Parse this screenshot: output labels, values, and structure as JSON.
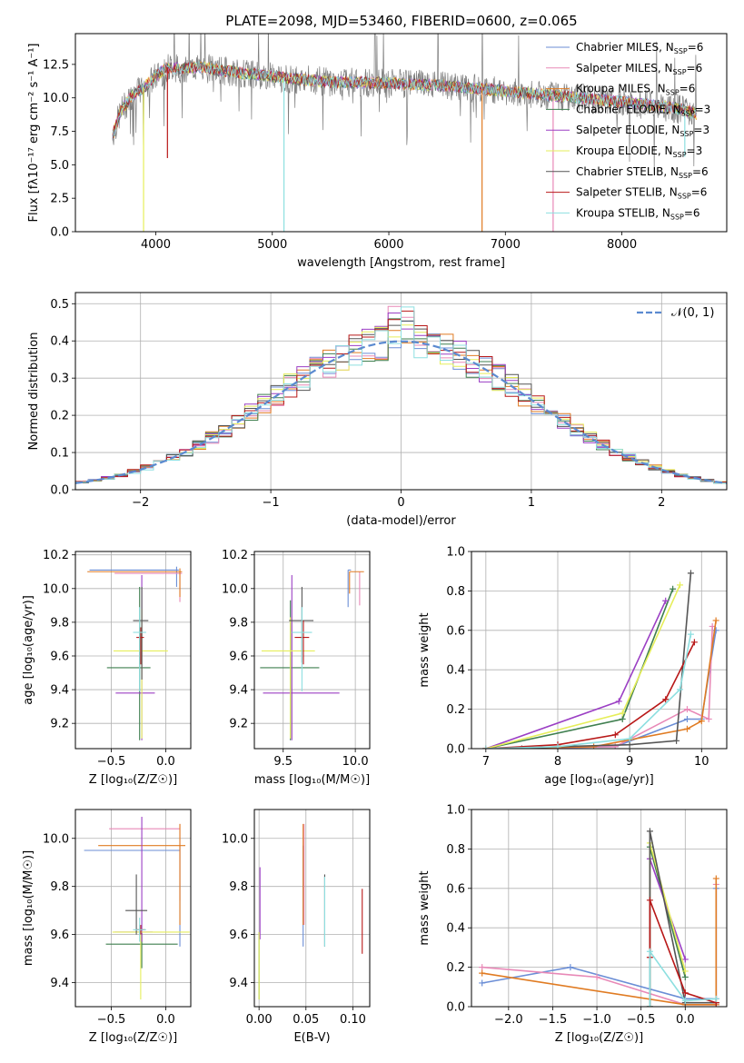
{
  "figure_title": "PLATE=2098, MJD=53460, FIBERID=0600, z=0.065",
  "colors": {
    "Chabrier MILES": "#6b8ed6",
    "Salpeter MILES": "#e889b7",
    "Kroupa MILES": "#e07b22",
    "Chabrier ELODIE": "#3f7f4f",
    "Salpeter ELODIE": "#9b3fc4",
    "Kroupa ELODIE": "#e6ee5a",
    "Chabrier STELIB": "#555555",
    "Salpeter STELIB": "#b81818",
    "Kroupa STELIB": "#8ddfe0",
    "data": "#7f7f7f",
    "normal": "#5b8ad0"
  },
  "chart_data": [
    {
      "id": "spectrum",
      "type": "line",
      "title": "PLATE=2098, MJD=53460, FIBERID=0600, z=0.065",
      "xlabel": "wavelength [Angstrom, rest frame]",
      "ylabel": "Flux [fλ10⁻¹⁷ erg cm⁻² s⁻¹ A⁻¹]",
      "xlim": [
        3310,
        8900
      ],
      "ylim": [
        0,
        14.8
      ],
      "xticks": [
        "4000",
        "5000",
        "6000",
        "7000",
        "8000"
      ],
      "yticks": [
        "0.0",
        "2.5",
        "5.0",
        "7.5",
        "10.0",
        "12.5"
      ],
      "legend_position": "upper right",
      "legend": [
        {
          "label": "Chabrier MILES, N",
          "sub": "SSP",
          "tail": "=6"
        },
        {
          "label": "Salpeter MILES, N",
          "sub": "SSP",
          "tail": "=6"
        },
        {
          "label": "Kroupa MILES, N",
          "sub": "SSP",
          "tail": "=6"
        },
        {
          "label": "Chabrier ELODIE, N",
          "sub": "SSP",
          "tail": "=3"
        },
        {
          "label": "Salpeter ELODIE, N",
          "sub": "SSP",
          "tail": "=3"
        },
        {
          "label": "Kroupa ELODIE, N",
          "sub": "SSP",
          "tail": "=3"
        },
        {
          "label": "Chabrier STELIB, N",
          "sub": "SSP",
          "tail": "=6"
        },
        {
          "label": "Salpeter STELIB, N",
          "sub": "SSP",
          "tail": "=6"
        },
        {
          "label": "Kroupa STELIB, N",
          "sub": "SSP",
          "tail": "=6"
        }
      ],
      "model_anchors": {
        "x": [
          3630,
          3700,
          3800,
          3900,
          4000,
          4100,
          4200,
          4400,
          4600,
          4800,
          5000,
          5200,
          5500,
          6000,
          6500,
          7000,
          7500,
          8000,
          8500,
          8640
        ],
        "y": [
          7.2,
          9.0,
          10.2,
          10.8,
          11.6,
          12.3,
          12.2,
          12.3,
          12.0,
          11.8,
          11.6,
          11.4,
          11.2,
          11.1,
          10.9,
          10.5,
          10.1,
          9.7,
          9.2,
          8.8
        ]
      },
      "dropouts": [
        {
          "x": 3895,
          "color": "Kroupa ELODIE",
          "yend": 0
        },
        {
          "x": 4100,
          "color": "Salpeter STELIB",
          "yend": 5.5
        },
        {
          "x": 5100,
          "color": "Kroupa STELIB",
          "yend": 0
        },
        {
          "x": 6800,
          "color": "Kroupa MILES",
          "yend": 0
        },
        {
          "x": 7410,
          "color": "Salpeter MILES",
          "yend": 0
        },
        {
          "x": 8540,
          "color": "Kroupa STELIB",
          "yend": 5.6
        }
      ]
    },
    {
      "id": "residuals",
      "type": "line",
      "xlabel": "(data-model)/error",
      "ylabel": "Normed distribution",
      "xlim": [
        -2.5,
        2.5
      ],
      "ylim": [
        0,
        0.53
      ],
      "xticks": [
        "−2",
        "−1",
        "0",
        "1",
        "2"
      ],
      "yticks": [
        "0.0",
        "0.1",
        "0.2",
        "0.3",
        "0.4",
        "0.5"
      ],
      "grid": true,
      "legend_position": "upper right",
      "legend_label": "𝒩(0, 1)",
      "bin_width": 0.1,
      "hist_start": -2.5
    },
    {
      "id": "z-age",
      "type": "scatter",
      "xlabel": "Z [log₁₀(Z/Z☉)]",
      "ylabel": "age  [log₁₀(age/yr)]",
      "xlim": [
        -0.83,
        0.23
      ],
      "ylim": [
        9.05,
        10.22
      ],
      "xticks": [
        "−0.5",
        "0.0"
      ],
      "yticks": [
        "9.2",
        "9.4",
        "9.6",
        "9.8",
        "10.0",
        "10.2"
      ],
      "grid": true,
      "points": [
        {
          "series": "Chabrier MILES",
          "x": 0.1,
          "xerr": [
            0.8,
            0.02
          ],
          "y": 10.11,
          "yerr": [
            0.1,
            0.02
          ]
        },
        {
          "series": "Salpeter MILES",
          "x": 0.13,
          "xerr": [
            0.6,
            0.02
          ],
          "y": 10.09,
          "yerr": [
            0.17,
            0.02
          ]
        },
        {
          "series": "Kroupa MILES",
          "x": 0.13,
          "xerr": [
            0.85,
            0.02
          ],
          "y": 10.1,
          "yerr": [
            0.15,
            0.02
          ]
        },
        {
          "series": "Chabrier ELODIE",
          "x": -0.24,
          "xerr": [
            0.3,
            0.1
          ],
          "y": 9.53,
          "yerr": [
            0.43,
            0.48
          ]
        },
        {
          "series": "Salpeter ELODIE",
          "x": -0.22,
          "xerr": [
            0.24,
            0.12
          ],
          "y": 9.38,
          "yerr": [
            0.28,
            0.7
          ]
        },
        {
          "series": "Kroupa ELODIE",
          "x": -0.22,
          "xerr": [
            0.26,
            0.24
          ],
          "y": 9.63,
          "yerr": [
            0.52,
            0.25
          ]
        },
        {
          "series": "Chabrier STELIB",
          "x": -0.22,
          "xerr": [
            0.08,
            0.06
          ],
          "y": 9.81,
          "yerr": [
            0.35,
            0.2
          ]
        },
        {
          "series": "Salpeter STELIB",
          "x": -0.23,
          "xerr": [
            0.04,
            0.03
          ],
          "y": 9.71,
          "yerr": [
            0.16,
            0.06
          ]
        },
        {
          "series": "Kroupa STELIB",
          "x": -0.24,
          "xerr": [
            0.06,
            0.06
          ],
          "y": 9.74,
          "yerr": [
            0.35,
            0.15
          ]
        }
      ]
    },
    {
      "id": "mass-age",
      "type": "scatter",
      "xlabel": "mass [log₁₀(M/M☉)]",
      "ylabel": "",
      "xlim": [
        9.3,
        10.1
      ],
      "ylim": [
        9.05,
        10.22
      ],
      "xticks": [
        "9.5",
        "10.0"
      ],
      "yticks": [
        "9.2",
        "9.4",
        "9.6",
        "9.8",
        "10.0",
        "10.2"
      ],
      "grid": true,
      "points": [
        {
          "series": "Chabrier MILES",
          "x": 9.95,
          "xerr": [
            0.0,
            0.02
          ],
          "y": 10.11,
          "yerr": [
            0.22,
            0.0
          ]
        },
        {
          "series": "Salpeter MILES",
          "x": 10.03,
          "xerr": [
            0.0,
            0.0
          ],
          "y": 10.05,
          "yerr": [
            0.15,
            0.05
          ]
        },
        {
          "series": "Kroupa MILES",
          "x": 9.96,
          "xerr": [
            0.0,
            0.1
          ],
          "y": 10.1,
          "yerr": [
            0.13,
            0.0
          ]
        },
        {
          "series": "Chabrier ELODIE",
          "x": 9.55,
          "xerr": [
            0.21,
            0.2
          ],
          "y": 9.53,
          "yerr": [
            0.43,
            0.4
          ]
        },
        {
          "series": "Salpeter ELODIE",
          "x": 9.56,
          "xerr": [
            0.2,
            0.33
          ],
          "y": 9.38,
          "yerr": [
            0.28,
            0.7
          ]
        },
        {
          "series": "Kroupa ELODIE",
          "x": 9.55,
          "xerr": [
            0.2,
            0.17
          ],
          "y": 9.63,
          "yerr": [
            0.52,
            0.2
          ]
        },
        {
          "series": "Chabrier STELIB",
          "x": 9.63,
          "xerr": [
            0.09,
            0.08
          ],
          "y": 9.81,
          "yerr": [
            0.25,
            0.2
          ]
        },
        {
          "series": "Salpeter STELIB",
          "x": 9.64,
          "xerr": [
            0.06,
            0.04
          ],
          "y": 9.71,
          "yerr": [
            0.16,
            0.1
          ]
        },
        {
          "series": "Kroupa STELIB",
          "x": 9.63,
          "xerr": [
            0.07,
            0.07
          ],
          "y": 9.74,
          "yerr": [
            0.35,
            0.15
          ]
        }
      ]
    },
    {
      "id": "age-weight",
      "type": "line",
      "xlabel": "age  [log₁₀(age/yr)]",
      "ylabel": "mass weight",
      "xlim": [
        6.8,
        10.35
      ],
      "ylim": [
        0,
        1
      ],
      "xticks": [
        "7",
        "8",
        "9",
        "10"
      ],
      "yticks": [
        "0.0",
        "0.2",
        "0.4",
        "0.6",
        "0.8",
        "1.0"
      ],
      "grid": true,
      "series": [
        {
          "name": "Chabrier MILES",
          "x": [
            7.0,
            8.8,
            9.8,
            10.0,
            10.2
          ],
          "y": [
            0.0,
            0.01,
            0.15,
            0.15,
            0.6
          ]
        },
        {
          "name": "Salpeter MILES",
          "x": [
            7.0,
            8.8,
            9.8,
            10.1,
            10.15
          ],
          "y": [
            0.0,
            0.01,
            0.2,
            0.15,
            0.62
          ]
        },
        {
          "name": "Kroupa MILES",
          "x": [
            7.0,
            8.5,
            9.8,
            10.0,
            10.2
          ],
          "y": [
            0.0,
            0.01,
            0.1,
            0.14,
            0.65
          ]
        },
        {
          "name": "Chabrier ELODIE",
          "x": [
            7.0,
            8.9,
            9.6
          ],
          "y": [
            0.0,
            0.15,
            0.81
          ]
        },
        {
          "name": "Salpeter ELODIE",
          "x": [
            7.0,
            8.85,
            9.5
          ],
          "y": [
            0.0,
            0.24,
            0.75
          ]
        },
        {
          "name": "Kroupa ELODIE",
          "x": [
            7.0,
            8.9,
            9.7
          ],
          "y": [
            0.0,
            0.18,
            0.83
          ]
        },
        {
          "name": "Chabrier STELIB",
          "x": [
            7.5,
            8.0,
            9.0,
            9.65,
            9.85
          ],
          "y": [
            0.0,
            0.01,
            0.02,
            0.04,
            0.89
          ]
        },
        {
          "name": "Salpeter STELIB",
          "x": [
            7.0,
            8.0,
            8.8,
            9.5,
            9.9
          ],
          "y": [
            0.0,
            0.02,
            0.07,
            0.25,
            0.54
          ]
        },
        {
          "name": "Kroupa STELIB",
          "x": [
            7.0,
            8.0,
            9.0,
            9.7,
            9.85
          ],
          "y": [
            0.0,
            0.01,
            0.05,
            0.3,
            0.58
          ]
        }
      ]
    },
    {
      "id": "z-mass",
      "type": "scatter",
      "xlabel": "Z [log₁₀(Z/Z☉)]",
      "ylabel": "mass [log₁₀(M/M☉)]",
      "xlim": [
        -0.83,
        0.23
      ],
      "ylim": [
        9.3,
        10.12
      ],
      "xticks": [
        "−0.5",
        "0.0"
      ],
      "yticks": [
        "9.4",
        "9.6",
        "9.8",
        "10.0"
      ],
      "grid": true,
      "points": [
        {
          "series": "Chabrier MILES",
          "x": 0.13,
          "xerr": [
            0.88,
            0.0
          ],
          "y": 9.95,
          "yerr": [
            0.4,
            0.02
          ]
        },
        {
          "series": "Salpeter MILES",
          "x": 0.13,
          "xerr": [
            0.65,
            0.0
          ],
          "y": 10.04,
          "yerr": [
            0.3,
            0.02
          ]
        },
        {
          "series": "Kroupa MILES",
          "x": 0.13,
          "xerr": [
            0.75,
            0.05
          ],
          "y": 9.97,
          "yerr": [
            0.33,
            0.09
          ]
        },
        {
          "series": "Chabrier ELODIE",
          "x": -0.22,
          "xerr": [
            0.33,
            0.33
          ],
          "y": 9.56,
          "yerr": [
            0.1,
            0.05
          ]
        },
        {
          "series": "Salpeter ELODIE",
          "x": -0.22,
          "xerr": [
            0.25,
            0.1
          ],
          "y": 9.61,
          "yerr": [
            0.04,
            0.48
          ]
        },
        {
          "series": "Kroupa ELODIE",
          "x": -0.23,
          "xerr": [
            0.26,
            0.45
          ],
          "y": 9.61,
          "yerr": [
            0.28,
            0.0
          ]
        },
        {
          "series": "Chabrier STELIB",
          "x": -0.27,
          "xerr": [
            0.1,
            0.1
          ],
          "y": 9.7,
          "yerr": [
            0.1,
            0.15
          ]
        },
        {
          "series": "Salpeter STELIB",
          "x": -0.23,
          "xerr": [
            0.04,
            0.04
          ],
          "y": 9.62,
          "yerr": [
            0.02,
            0.02
          ]
        },
        {
          "series": "Kroupa STELIB",
          "x": -0.24,
          "xerr": [
            0.06,
            0.06
          ],
          "y": 9.62,
          "yerr": [
            0.05,
            0.05
          ]
        }
      ]
    },
    {
      "id": "ebv-mass",
      "type": "scatter",
      "xlabel": "E(B-V)",
      "ylabel": "",
      "xlim": [
        -0.005,
        0.118
      ],
      "ylim": [
        9.3,
        10.12
      ],
      "xticks": [
        "0.00",
        "0.05",
        "0.10"
      ],
      "yticks": [
        "9.4",
        "9.6",
        "9.8",
        "10.0"
      ],
      "grid": true,
      "points": [
        {
          "series": "Chabrier MILES",
          "x": 0.047,
          "xerr": [
            0,
            0
          ],
          "y": 9.95,
          "yerr": [
            0.4,
            0.02
          ]
        },
        {
          "series": "Salpeter MILES",
          "x": 0.048,
          "xerr": [
            0,
            0
          ],
          "y": 10.04,
          "yerr": [
            0.4,
            0.02
          ]
        },
        {
          "series": "Kroupa MILES",
          "x": 0.047,
          "xerr": [
            0,
            0
          ],
          "y": 9.97,
          "yerr": [
            0.33,
            0.09
          ]
        },
        {
          "series": "Chabrier ELODIE",
          "x": 0.0,
          "xerr": [
            0,
            0
          ],
          "y": 9.56,
          "yerr": [
            0.23,
            0.05
          ]
        },
        {
          "series": "Salpeter ELODIE",
          "x": 0.001,
          "xerr": [
            0,
            0
          ],
          "y": 9.61,
          "yerr": [
            0.03,
            0.27
          ]
        },
        {
          "series": "Kroupa ELODIE",
          "x": 0.0,
          "xerr": [
            0,
            0
          ],
          "y": 9.61,
          "yerr": [
            0.28,
            0.0
          ]
        },
        {
          "series": "Chabrier STELIB",
          "x": 0.07,
          "xerr": [
            0,
            0
          ],
          "y": 9.7,
          "yerr": [
            0.15,
            0.15
          ]
        },
        {
          "series": "Salpeter STELIB",
          "x": 0.11,
          "xerr": [
            0,
            0
          ],
          "y": 9.62,
          "yerr": [
            0.1,
            0.17
          ]
        },
        {
          "series": "Kroupa STELIB",
          "x": 0.07,
          "xerr": [
            0,
            0
          ],
          "y": 9.7,
          "yerr": [
            0.15,
            0.14
          ]
        }
      ]
    },
    {
      "id": "z-weight",
      "type": "line",
      "xlabel": "Z [log₁₀(Z/Z☉)]",
      "ylabel": "mass weight",
      "xlim": [
        -2.42,
        0.47
      ],
      "ylim": [
        0,
        1
      ],
      "xticks": [
        "−2.0",
        "−1.5",
        "−1.0",
        "−0.5",
        "0.0"
      ],
      "yticks": [
        "0.0",
        "0.2",
        "0.4",
        "0.6",
        "0.8",
        "1.0"
      ],
      "grid": true,
      "series": [
        {
          "name": "Chabrier MILES",
          "x": [
            -2.3,
            -1.3,
            0.0,
            0.35,
            0.35
          ],
          "y": [
            0.12,
            0.2,
            0.04,
            0.04,
            0.6
          ]
        },
        {
          "name": "Salpeter MILES",
          "x": [
            -2.3,
            -1.0,
            0.0,
            0.35,
            0.35
          ],
          "y": [
            0.2,
            0.15,
            0.01,
            0.01,
            0.62
          ]
        },
        {
          "name": "Kroupa MILES",
          "x": [
            -2.3,
            0.0,
            0.35,
            0.35
          ],
          "y": [
            0.17,
            0.01,
            0.01,
            0.65
          ]
        },
        {
          "name": "Chabrier ELODIE",
          "x": [
            -0.4,
            -0.4,
            0.0
          ],
          "y": [
            0.0,
            0.81,
            0.15
          ]
        },
        {
          "name": "Salpeter ELODIE",
          "x": [
            -0.4,
            -0.4,
            0.0
          ],
          "y": [
            0.0,
            0.75,
            0.24
          ]
        },
        {
          "name": "Kroupa ELODIE",
          "x": [
            -0.4,
            -0.4,
            0.0
          ],
          "y": [
            0.0,
            0.83,
            0.18
          ]
        },
        {
          "name": "Chabrier STELIB",
          "x": [
            -0.4,
            -0.4,
            0.0,
            0.35
          ],
          "y": [
            0.0,
            0.89,
            0.02,
            0.02
          ]
        },
        {
          "name": "Salpeter STELIB",
          "x": [
            -0.4,
            -0.4,
            0.0,
            0.35
          ],
          "y": [
            0.25,
            0.54,
            0.07,
            0.02
          ]
        },
        {
          "name": "Kroupa STELIB",
          "x": [
            -0.4,
            -0.4,
            0.0,
            0.35
          ],
          "y": [
            0.0,
            0.28,
            0.03,
            0.04
          ]
        }
      ]
    }
  ]
}
